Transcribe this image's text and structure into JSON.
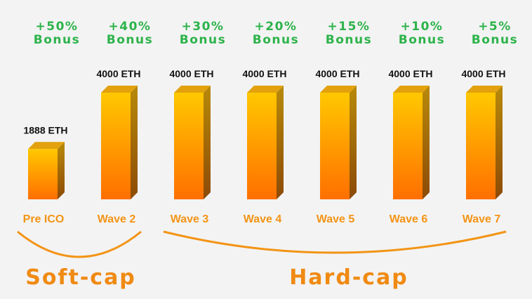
{
  "chart_data": {
    "type": "bar",
    "categories": [
      "Pre ICO",
      "Wave 2",
      "Wave 3",
      "Wave 4",
      "Wave 5",
      "Wave 6",
      "Wave 7"
    ],
    "values": [
      1888,
      4000,
      4000,
      4000,
      4000,
      4000,
      4000
    ],
    "value_labels": [
      "1888 ETH",
      "4000 ETH",
      "4000 ETH",
      "4000 ETH",
      "4000 ETH",
      "4000 ETH",
      "4000 ETH"
    ],
    "bonus_percent": [
      "+50%",
      "+40%",
      "+30%",
      "+20%",
      "+15%",
      "+10%",
      "+5%"
    ],
    "bonus_word": "Bonus",
    "ylim": [
      0,
      4000
    ],
    "groups": [
      {
        "label": "Soft-cap",
        "categories": [
          "Pre ICO",
          "Wave 2"
        ]
      },
      {
        "label": "Hard-cap",
        "categories": [
          "Wave 3",
          "Wave 4",
          "Wave 5",
          "Wave 6",
          "Wave 7"
        ]
      }
    ]
  },
  "colors": {
    "bar_top": "#ffc800",
    "bar_bottom": "#ff6f00",
    "bar_side": "#a86a06",
    "bar_cap": "#e2a10d",
    "bonus_text": "#2db34a",
    "category_text": "#f39415",
    "background": "#f3f3f3"
  }
}
